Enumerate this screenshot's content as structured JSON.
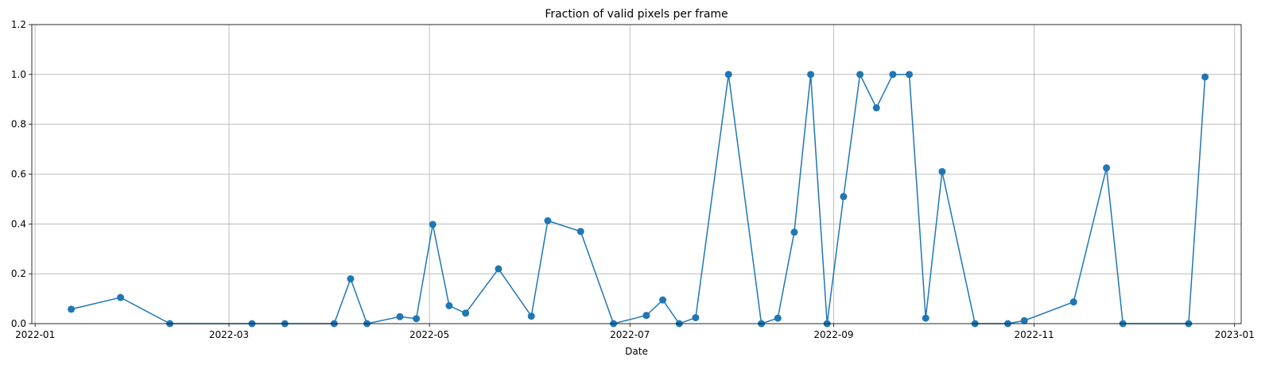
{
  "chart_data": {
    "type": "line",
    "title": "Fraction of valid pixels per frame",
    "xlabel": "Date",
    "ylabel": "",
    "xlim": [
      "2021-12-31",
      "2023-01-03"
    ],
    "ylim": [
      0,
      1.2
    ],
    "x_ticks": [
      "2022-01-01",
      "2022-03-01",
      "2022-05-01",
      "2022-07-01",
      "2022-09-01",
      "2022-11-01",
      "2023-01-01"
    ],
    "x_tick_labels": [
      "2022-01",
      "2022-03",
      "2022-05",
      "2022-07",
      "2022-09",
      "2022-11",
      "2023-01"
    ],
    "y_ticks": [
      0.0,
      0.2,
      0.4,
      0.6,
      0.8,
      1.0,
      1.2
    ],
    "y_tick_labels": [
      "0.0",
      "0.2",
      "0.4",
      "0.6",
      "0.8",
      "1.0",
      "1.2"
    ],
    "grid": true,
    "series": [
      {
        "color": "#1f77b4",
        "marker": "circle",
        "x": [
          "2022-01-12",
          "2022-01-27",
          "2022-02-11",
          "2022-03-08",
          "2022-03-18",
          "2022-04-02",
          "2022-04-07",
          "2022-04-12",
          "2022-04-22",
          "2022-04-27",
          "2022-05-02",
          "2022-05-07",
          "2022-05-12",
          "2022-05-22",
          "2022-06-01",
          "2022-06-06",
          "2022-06-16",
          "2022-06-26",
          "2022-07-06",
          "2022-07-11",
          "2022-07-16",
          "2022-07-21",
          "2022-07-31",
          "2022-08-10",
          "2022-08-15",
          "2022-08-20",
          "2022-08-25",
          "2022-08-30",
          "2022-09-04",
          "2022-09-09",
          "2022-09-14",
          "2022-09-19",
          "2022-09-24",
          "2022-09-29",
          "2022-10-04",
          "2022-10-14",
          "2022-10-24",
          "2022-10-29",
          "2022-11-13",
          "2022-11-23",
          "2022-11-28",
          "2022-12-18",
          "2022-12-23"
        ],
        "y": [
          0.058,
          0.105,
          0.0,
          0.0,
          0.0,
          0.0,
          0.18,
          0.0,
          0.028,
          0.02,
          0.398,
          0.072,
          0.042,
          0.22,
          0.03,
          0.413,
          0.37,
          0.0,
          0.033,
          0.095,
          0.0,
          0.024,
          1.0,
          0.0,
          0.022,
          0.367,
          1.0,
          0.0,
          0.51,
          1.0,
          0.866,
          1.0,
          1.0,
          0.022,
          0.61,
          0.0,
          0.0,
          0.012,
          0.087,
          0.625,
          0.0,
          0.0,
          0.99
        ]
      }
    ]
  }
}
